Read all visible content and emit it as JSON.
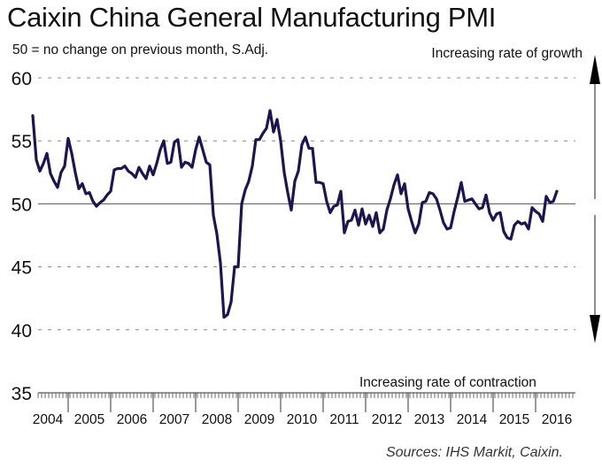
{
  "header": {
    "title": "Caixin China General Manufacturing PMI",
    "subtitle": "50 = no change on previous month, S.Adj.",
    "growth_label": "Increasing rate of growth",
    "contraction_label": "Increasing rate of contraction",
    "source": "Sources: IHS Markit, Caixin."
  },
  "chart_data": {
    "type": "line",
    "title": "Caixin China General Manufacturing PMI",
    "subtitle": "50 = no change on previous month, S.Adj.",
    "xlabel": "",
    "ylabel": "",
    "ylim": [
      35,
      60
    ],
    "yticks": [
      35,
      40,
      45,
      50,
      55,
      60
    ],
    "reference_line": 50,
    "grid": "dashed horizontal",
    "xtick_labels": [
      "2004",
      "2005",
      "2006",
      "2007",
      "2008",
      "2009",
      "2010",
      "2011",
      "2012",
      "2013",
      "2014",
      "2015",
      "2016"
    ],
    "annotations": [
      "Increasing rate of growth",
      "Increasing rate of contraction"
    ],
    "line_color": "#1c1650",
    "series": [
      {
        "name": "Caixin China General Manufacturing PMI",
        "start": "2004-04",
        "frequency": "monthly",
        "values": [
          57.0,
          53.5,
          52.6,
          53.2,
          54.0,
          52.4,
          51.8,
          51.3,
          52.5,
          53.0,
          55.2,
          54.0,
          52.5,
          51.2,
          51.6,
          50.8,
          50.9,
          50.2,
          49.8,
          50.1,
          50.3,
          50.7,
          51.0,
          52.7,
          52.8,
          52.8,
          53.0,
          52.6,
          52.4,
          52.1,
          52.9,
          52.4,
          52.0,
          53.0,
          52.3,
          53.2,
          54.3,
          55.0,
          53.2,
          53.3,
          54.9,
          55.1,
          52.9,
          53.3,
          53.2,
          52.9,
          54.3,
          55.3,
          54.3,
          53.3,
          53.1,
          49.1,
          47.6,
          45.3,
          41.0,
          41.2,
          42.2,
          45.0,
          45.0,
          50.0,
          51.1,
          51.8,
          53.0,
          55.1,
          55.1,
          55.6,
          56.0,
          57.4,
          55.7,
          56.7,
          55.0,
          52.5,
          50.9,
          49.5,
          51.8,
          52.6,
          54.7,
          55.3,
          54.4,
          54.4,
          51.7,
          51.7,
          51.6,
          50.2,
          49.3,
          49.8,
          49.9,
          51.0,
          47.7,
          48.6,
          48.7,
          49.5,
          48.3,
          49.6,
          48.4,
          49.1,
          48.2,
          49.3,
          47.7,
          48.0,
          49.5,
          50.4,
          51.5,
          52.3,
          50.8,
          51.6,
          49.6,
          48.6,
          47.7,
          48.4,
          50.1,
          50.2,
          50.9,
          50.8,
          50.4,
          49.5,
          48.5,
          48.0,
          48.1,
          49.4,
          50.5,
          51.7,
          50.2,
          50.3,
          50.4,
          50.0,
          49.6,
          49.7,
          50.7,
          49.3,
          48.7,
          49.2,
          49.3,
          47.8,
          47.3,
          47.2,
          48.3,
          48.6,
          48.4,
          48.5,
          48.0,
          49.7,
          49.4,
          49.2,
          48.6,
          50.6,
          50.1,
          50.2,
          51.0
        ]
      }
    ]
  }
}
